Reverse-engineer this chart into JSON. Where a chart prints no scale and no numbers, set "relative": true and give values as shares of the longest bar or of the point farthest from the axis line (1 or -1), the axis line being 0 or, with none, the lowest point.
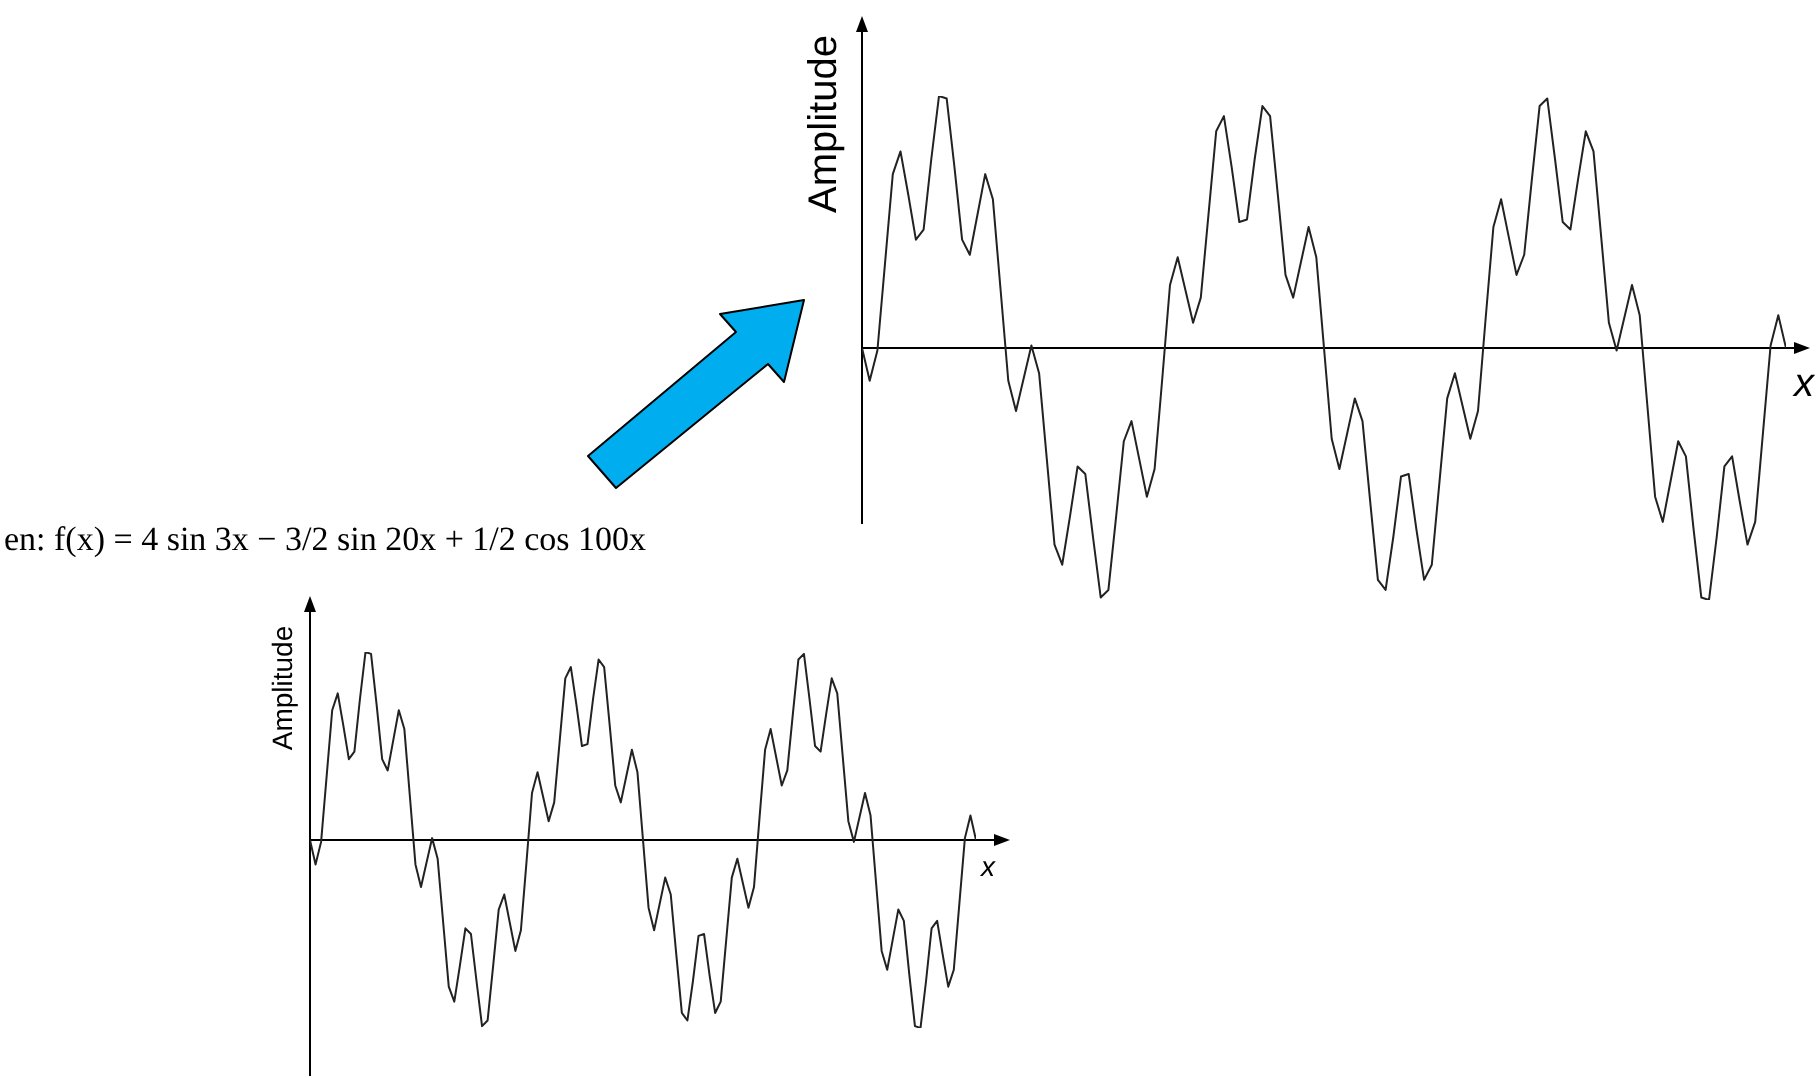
{
  "chart_data": [
    {
      "type": "line",
      "relative": true,
      "xlabel": "x",
      "ylabel": "Amplitude",
      "categories": [
        null,
        null,
        null,
        null,
        null,
        null,
        null,
        null,
        null,
        null,
        null,
        null,
        null,
        null,
        null,
        null,
        null,
        null,
        null,
        null,
        null,
        null,
        null,
        null,
        null,
        null,
        null,
        null,
        null,
        null,
        null,
        null,
        null,
        null,
        null,
        null,
        null,
        null,
        null,
        null,
        null,
        null,
        null,
        null,
        null,
        null,
        null,
        null,
        null,
        null,
        null,
        null,
        null,
        null,
        null,
        null,
        null,
        null,
        null,
        null,
        null,
        null,
        null,
        null,
        null,
        null,
        null,
        null,
        null,
        null,
        null,
        null,
        null,
        null,
        null,
        null,
        null,
        null,
        null,
        null,
        null,
        null,
        null,
        null,
        null,
        null,
        null,
        null,
        null,
        null,
        null,
        null,
        null,
        null,
        null,
        null,
        null,
        null,
        null,
        null,
        null,
        null,
        null,
        null,
        null,
        null,
        null,
        null,
        null,
        null,
        null,
        null,
        null,
        null,
        null,
        null,
        null,
        null,
        null,
        null,
        null
      ],
      "series": [
        {
          "color": "#222222",
          "values": [
            0,
            -0.13,
            -0.01,
            0.34,
            0.69,
            0.78,
            0.61,
            0.43,
            0.47,
            0.75,
            1,
            0.99,
            0.72,
            0.43,
            0.37,
            0.53,
            0.69,
            0.59,
            0.23,
            -0.13,
            -0.25,
            -0.12,
            0.01,
            -0.1,
            -0.44,
            -0.78,
            -0.86,
            -0.67,
            -0.47,
            -0.5,
            -0.75,
            -0.99,
            -0.96,
            -0.67,
            -0.37,
            -0.29,
            -0.44,
            -0.59,
            -0.48,
            -0.12,
            0.25,
            0.36,
            0.23,
            0.1,
            0.2,
            0.53,
            0.86,
            0.92,
            0.72,
            0.5,
            0.51,
            0.75,
            0.96,
            0.92,
            0.61,
            0.29,
            0.2,
            0.34,
            0.48,
            0.36,
            0,
            -0.36,
            -0.48,
            -0.34,
            -0.2,
            -0.29,
            -0.61,
            -0.92,
            -0.96,
            -0.75,
            -0.51,
            -0.5,
            -0.72,
            -0.92,
            -0.86,
            -0.53,
            -0.2,
            -0.1,
            -0.23,
            -0.36,
            -0.25,
            0.12,
            0.48,
            0.59,
            0.44,
            0.29,
            0.37,
            0.67,
            0.96,
            0.99,
            0.75,
            0.5,
            0.47,
            0.67,
            0.86,
            0.78,
            0.44,
            0.1,
            -0.01,
            0.12,
            0.25,
            0.13,
            -0.23,
            -0.59,
            -0.69,
            -0.53,
            -0.37,
            -0.43,
            -0.72,
            -0.99,
            -1,
            -0.75,
            -0.47,
            -0.43,
            -0.61,
            -0.78,
            -0.69,
            -0.34,
            0.01,
            0.13,
            0
          ]
        }
      ]
    },
    {
      "type": "line",
      "relative": true,
      "title": "en: f(x) = 4 sin 3x − 3/2 sin 20x + 1/2 cos 100x",
      "xlabel": "x",
      "ylabel": "Amplitude",
      "categories": [
        null,
        null,
        null,
        null,
        null,
        null,
        null,
        null,
        null,
        null,
        null,
        null,
        null,
        null,
        null,
        null,
        null,
        null,
        null,
        null,
        null,
        null,
        null,
        null,
        null,
        null,
        null,
        null,
        null,
        null,
        null,
        null,
        null,
        null,
        null,
        null,
        null,
        null,
        null,
        null,
        null,
        null,
        null,
        null,
        null,
        null,
        null,
        null,
        null,
        null,
        null,
        null,
        null,
        null,
        null,
        null,
        null,
        null,
        null,
        null,
        null,
        null,
        null,
        null,
        null,
        null,
        null,
        null,
        null,
        null,
        null,
        null,
        null,
        null,
        null,
        null,
        null,
        null,
        null,
        null,
        null,
        null,
        null,
        null,
        null,
        null,
        null,
        null,
        null,
        null,
        null,
        null,
        null,
        null,
        null,
        null,
        null,
        null,
        null,
        null,
        null,
        null,
        null,
        null,
        null,
        null,
        null,
        null,
        null,
        null,
        null,
        null,
        null,
        null,
        null,
        null,
        null,
        null,
        null,
        null,
        null
      ],
      "series": [
        {
          "color": "#222222",
          "values": [
            0,
            -0.13,
            -0.01,
            0.34,
            0.69,
            0.78,
            0.61,
            0.43,
            0.47,
            0.75,
            1,
            0.99,
            0.72,
            0.43,
            0.37,
            0.53,
            0.69,
            0.59,
            0.23,
            -0.13,
            -0.25,
            -0.12,
            0.01,
            -0.1,
            -0.44,
            -0.78,
            -0.86,
            -0.67,
            -0.47,
            -0.5,
            -0.75,
            -0.99,
            -0.96,
            -0.67,
            -0.37,
            -0.29,
            -0.44,
            -0.59,
            -0.48,
            -0.12,
            0.25,
            0.36,
            0.23,
            0.1,
            0.2,
            0.53,
            0.86,
            0.92,
            0.72,
            0.5,
            0.51,
            0.75,
            0.96,
            0.92,
            0.61,
            0.29,
            0.2,
            0.34,
            0.48,
            0.36,
            0,
            -0.36,
            -0.48,
            -0.34,
            -0.2,
            -0.29,
            -0.61,
            -0.92,
            -0.96,
            -0.75,
            -0.51,
            -0.5,
            -0.72,
            -0.92,
            -0.86,
            -0.53,
            -0.2,
            -0.1,
            -0.23,
            -0.36,
            -0.25,
            0.12,
            0.48,
            0.59,
            0.44,
            0.29,
            0.37,
            0.67,
            0.96,
            0.99,
            0.75,
            0.5,
            0.47,
            0.67,
            0.86,
            0.78,
            0.44,
            0.1,
            -0.01,
            0.12,
            0.25,
            0.13,
            -0.23,
            -0.59,
            -0.69,
            -0.53,
            -0.37,
            -0.43,
            -0.72,
            -0.99,
            -1,
            -0.75,
            -0.47,
            -0.43,
            -0.61,
            -0.78,
            -0.69,
            -0.34,
            0.01,
            0.13,
            0
          ]
        }
      ]
    }
  ]
}
